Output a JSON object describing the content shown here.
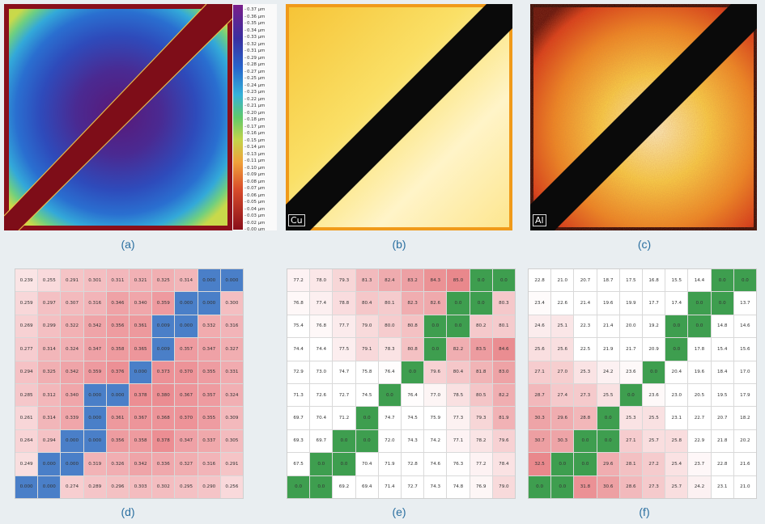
{
  "panels": {
    "a": {
      "caption": "(a)"
    },
    "b": {
      "caption": "(b)",
      "element": "Cu"
    },
    "c": {
      "caption": "(c)",
      "element": "Al"
    },
    "d": {
      "caption": "(d)"
    },
    "e": {
      "caption": "(e)"
    },
    "f": {
      "caption": "(f)"
    }
  },
  "colorbar": {
    "labels": [
      "0.37 µm",
      "0.36 µm",
      "0.35 µm",
      "0.34 µm",
      "0.33 µm",
      "0.32 µm",
      "0.31 µm",
      "0.29 µm",
      "0.28 µm",
      "0.27 µm",
      "0.25 µm",
      "0.24 µm",
      "0.23 µm",
      "0.22 µm",
      "0.21 µm",
      "0.20 µm",
      "0.18 µm",
      "0.17 µm",
      "0.16 µm",
      "0.15 µm",
      "0.14 µm",
      "0.13 µm",
      "0.11 µm",
      "0.10 µm",
      "0.09 µm",
      "0.08 µm",
      "0.07 µm",
      "0.06 µm",
      "0.05 µm",
      "0.04 µm",
      "0.03 µm",
      "0.02 µm",
      "0.00 µm"
    ]
  },
  "tables": {
    "d": {
      "colors": {
        "low": "#4a7fc8",
        "high": "#e8797f"
      },
      "rows": [
        [
          "0.239",
          "0.255",
          "0.291",
          "0.301",
          "0.311",
          "0.321",
          "0.325",
          "0.314",
          "0.000",
          "0.000"
        ],
        [
          "0.259",
          "0.297",
          "0.307",
          "0.316",
          "0.346",
          "0.340",
          "0.359",
          "0.000",
          "0.000",
          "0.300"
        ],
        [
          "0.269",
          "0.299",
          "0.322",
          "0.342",
          "0.356",
          "0.361",
          "0.009",
          "0.000",
          "0.332",
          "0.316"
        ],
        [
          "0.277",
          "0.314",
          "0.324",
          "0.347",
          "0.358",
          "0.365",
          "0.009",
          "0.357",
          "0.347",
          "0.327"
        ],
        [
          "0.294",
          "0.325",
          "0.342",
          "0.359",
          "0.376",
          "0.000",
          "0.373",
          "0.370",
          "0.355",
          "0.331"
        ],
        [
          "0.285",
          "0.312",
          "0.340",
          "0.000",
          "0.000",
          "0.378",
          "0.380",
          "0.367",
          "0.357",
          "0.324"
        ],
        [
          "0.261",
          "0.314",
          "0.339",
          "0.000",
          "0.361",
          "0.367",
          "0.368",
          "0.370",
          "0.355",
          "0.309"
        ],
        [
          "0.264",
          "0.294",
          "0.000",
          "0.000",
          "0.356",
          "0.358",
          "0.378",
          "0.347",
          "0.337",
          "0.305"
        ],
        [
          "0.249",
          "0.000",
          "0.000",
          "0.319",
          "0.326",
          "0.342",
          "0.336",
          "0.327",
          "0.316",
          "0.291"
        ],
        [
          "0.000",
          "0.000",
          "0.274",
          "0.289",
          "0.296",
          "0.303",
          "0.302",
          "0.295",
          "0.290",
          "0.256"
        ]
      ]
    },
    "e": {
      "colors": {
        "low": "#3e9e4f",
        "high": "#e57378"
      },
      "rows": [
        [
          "77.2",
          "78.0",
          "79.3",
          "81.3",
          "82.4",
          "83.2",
          "84.3",
          "85.0",
          "0.0",
          "0.0"
        ],
        [
          "76.8",
          "77.4",
          "78.8",
          "80.4",
          "80.1",
          "82.3",
          "82.6",
          "0.0",
          "0.0",
          "80.3"
        ],
        [
          "75.4",
          "76.8",
          "77.7",
          "79.0",
          "80.0",
          "80.8",
          "0.0",
          "0.0",
          "80.2",
          "80.1"
        ],
        [
          "74.4",
          "74.4",
          "77.5",
          "79.1",
          "78.3",
          "80.8",
          "0.0",
          "82.2",
          "83.5",
          "84.6"
        ],
        [
          "72.9",
          "73.0",
          "74.7",
          "75.8",
          "76.4",
          "0.0",
          "79.6",
          "80.4",
          "81.8",
          "83.0"
        ],
        [
          "71.3",
          "72.6",
          "72.7",
          "74.5",
          "0.0",
          "76.4",
          "77.0",
          "78.5",
          "80.5",
          "82.2"
        ],
        [
          "69.7",
          "70.4",
          "71.2",
          "0.0",
          "74.7",
          "74.5",
          "75.9",
          "77.3",
          "79.3",
          "81.9"
        ],
        [
          "69.3",
          "69.7",
          "0.0",
          "0.0",
          "72.0",
          "74.3",
          "74.2",
          "77.1",
          "78.2",
          "79.6"
        ],
        [
          "67.5",
          "0.0",
          "0.0",
          "70.4",
          "71.9",
          "72.8",
          "74.6",
          "76.3",
          "77.2",
          "78.4"
        ],
        [
          "0.0",
          "0.0",
          "69.2",
          "69.4",
          "71.4",
          "72.7",
          "74.3",
          "74.8",
          "76.9",
          "79.0"
        ]
      ]
    },
    "f": {
      "colors": {
        "low": "#3e9e4f",
        "high": "#e57378"
      },
      "rows": [
        [
          "22.8",
          "21.0",
          "20.7",
          "18.7",
          "17.5",
          "16.8",
          "15.5",
          "14.4",
          "0.0",
          "0.0"
        ],
        [
          "23.4",
          "22.6",
          "21.4",
          "19.6",
          "19.9",
          "17.7",
          "17.4",
          "0.0",
          "0.0",
          "13.7"
        ],
        [
          "24.6",
          "25.1",
          "22.3",
          "21.4",
          "20.0",
          "19.2",
          "0.0",
          "0.0",
          "14.8",
          "14.6"
        ],
        [
          "25.6",
          "25.6",
          "22.5",
          "21.9",
          "21.7",
          "20.9",
          "0.0",
          "17.8",
          "15.4",
          "15.6"
        ],
        [
          "27.1",
          "27.0",
          "25.3",
          "24.2",
          "23.6",
          "0.0",
          "20.4",
          "19.6",
          "18.4",
          "17.0"
        ],
        [
          "28.7",
          "27.4",
          "27.3",
          "25.5",
          "0.0",
          "23.6",
          "23.0",
          "20.5",
          "19.5",
          "17.9"
        ],
        [
          "30.3",
          "29.6",
          "28.8",
          "0.0",
          "25.3",
          "25.5",
          "23.1",
          "22.7",
          "20.7",
          "18.2"
        ],
        [
          "30.7",
          "30.3",
          "0.0",
          "0.0",
          "27.1",
          "25.7",
          "25.8",
          "22.9",
          "21.8",
          "20.2"
        ],
        [
          "32.5",
          "0.0",
          "0.0",
          "29.6",
          "28.1",
          "27.2",
          "25.4",
          "23.7",
          "22.8",
          "21.6"
        ],
        [
          "0.0",
          "0.0",
          "31.8",
          "30.6",
          "28.6",
          "27.3",
          "25.7",
          "24.2",
          "23.1",
          "21.0"
        ]
      ]
    }
  }
}
